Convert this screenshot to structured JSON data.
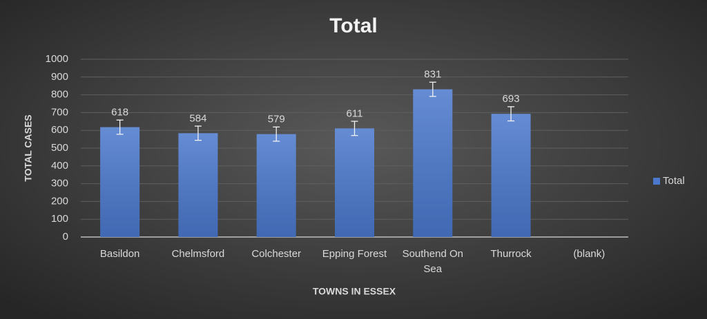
{
  "chart_data": {
    "type": "bar",
    "title": "Total",
    "x_label": "TOWNS IN ESSEX",
    "y_label": "TOTAL CASES",
    "categories": [
      "Basildon",
      "Chelmsford",
      "Colchester",
      "Epping Forest",
      "Southend On Sea",
      "Thurrock",
      "(blank)"
    ],
    "series": [
      {
        "name": "Total",
        "color": "#4a78cc",
        "values": [
          618,
          584,
          579,
          611,
          831,
          693,
          null
        ],
        "errors": [
          40,
          40,
          40,
          40,
          40,
          40,
          null
        ]
      }
    ],
    "ylim": [
      0,
      1000
    ],
    "yticks": [
      0,
      100,
      200,
      300,
      400,
      500,
      600,
      700,
      800,
      900,
      1000
    ],
    "grid": true,
    "legend": "right",
    "data_labels": true
  }
}
